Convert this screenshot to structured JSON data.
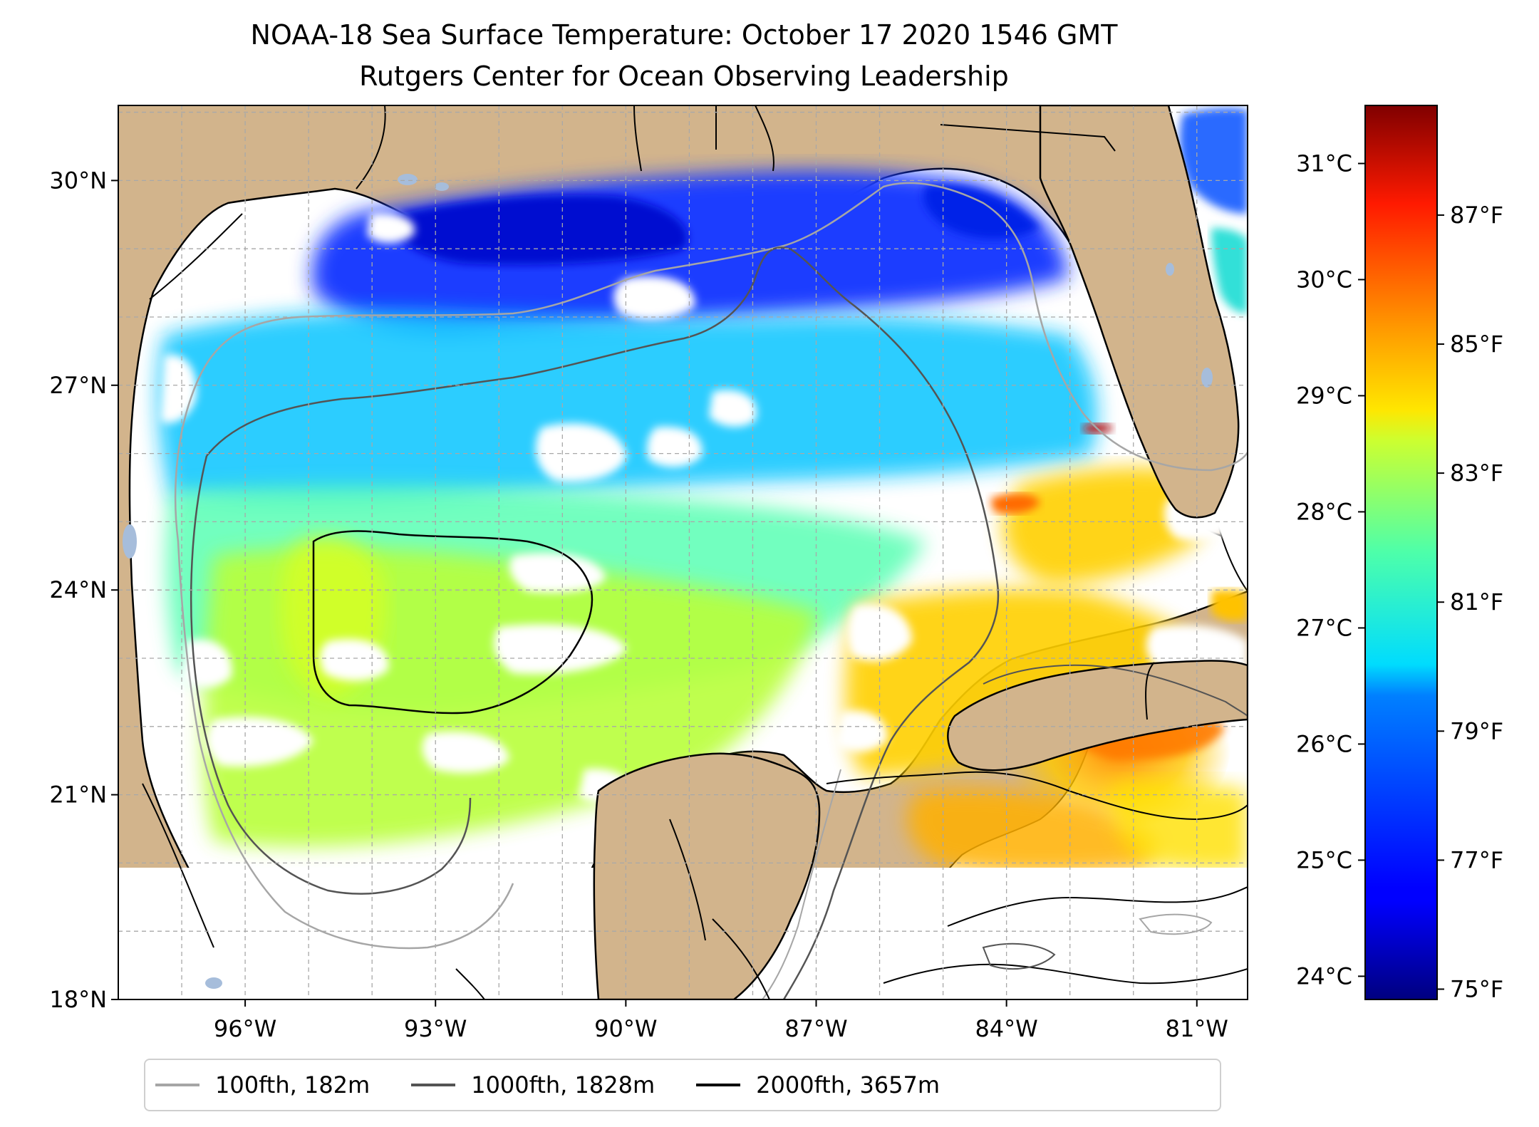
{
  "title": "NOAA-18 Sea Surface Temperature: October 17 2020 1546 GMT",
  "subtitle": "Rutgers Center for Ocean Observing Leadership",
  "map": {
    "lon_range": [
      -98,
      -80.2
    ],
    "lat_range": [
      18,
      31.1
    ],
    "lon_ticks": [
      {
        "value": -96,
        "label": "96°W"
      },
      {
        "value": -93,
        "label": "93°W"
      },
      {
        "value": -90,
        "label": "90°W"
      },
      {
        "value": -87,
        "label": "87°W"
      },
      {
        "value": -84,
        "label": "84°W"
      },
      {
        "value": -81,
        "label": "81°W"
      }
    ],
    "lat_ticks": [
      {
        "value": 18,
        "label": "18°N"
      },
      {
        "value": 21,
        "label": "21°N"
      },
      {
        "value": 24,
        "label": "24°N"
      },
      {
        "value": 27,
        "label": "27°N"
      },
      {
        "value": 30,
        "label": "30°N"
      }
    ],
    "gridlines": true,
    "colors": {
      "land": "#d2b48c",
      "no_data": "#ffffff",
      "coastline": "#000000",
      "inland_water": "#a6bddb"
    }
  },
  "colorbar": {
    "colormap": "jet",
    "range_c": [
      23.8,
      31.5
    ],
    "celsius_ticks": [
      {
        "value": 24,
        "label": "24°C"
      },
      {
        "value": 25,
        "label": "25°C"
      },
      {
        "value": 26,
        "label": "26°C"
      },
      {
        "value": 27,
        "label": "27°C"
      },
      {
        "value": 28,
        "label": "28°C"
      },
      {
        "value": 29,
        "label": "29°C"
      },
      {
        "value": 30,
        "label": "30°C"
      },
      {
        "value": 31,
        "label": "31°C"
      }
    ],
    "fahrenheit_ticks": [
      {
        "value": 75,
        "label": "75°F"
      },
      {
        "value": 77,
        "label": "77°F"
      },
      {
        "value": 79,
        "label": "79°F"
      },
      {
        "value": 81,
        "label": "81°F"
      },
      {
        "value": 83,
        "label": "83°F"
      },
      {
        "value": 85,
        "label": "85°F"
      },
      {
        "value": 87,
        "label": "87°F"
      }
    ]
  },
  "legend": {
    "items": [
      {
        "label": "100fth, 182m",
        "color": "#a6a6a6"
      },
      {
        "label": "1000fth, 1828m",
        "color": "#545454"
      },
      {
        "label": "2000fth, 3657m",
        "color": "#000000"
      }
    ]
  }
}
